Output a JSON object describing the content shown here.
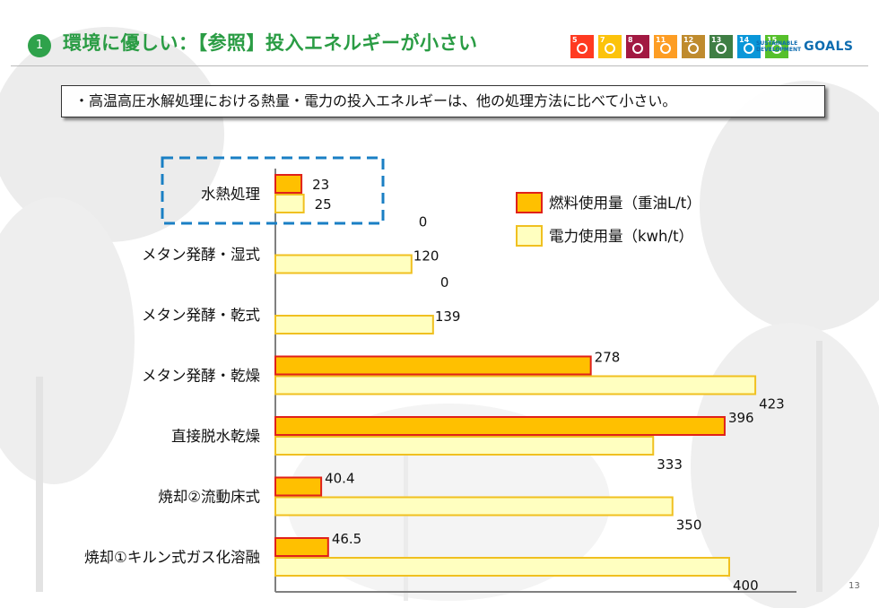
{
  "page": {
    "badge_number": "1",
    "title": "環境に優しい：【参照】投入エネルギーが小さい",
    "note": "・高温高圧水解処理における熱量・電力の投入エネルギーは、他の処理方法に比べて小さい。",
    "page_number": "13",
    "sdg_goals": [
      "5",
      "7",
      "8",
      "11",
      "12",
      "13",
      "14",
      "15"
    ],
    "sdg_logo_small": [
      "SUSTAINABLE",
      "DEVELOPMENT"
    ],
    "sdg_logo_big": "GOALS"
  },
  "colors": {
    "title_green": "#2a9c44",
    "fuel_fill": "#ffc000",
    "fuel_stroke": "#e0211a",
    "power_fill": "#ffffc0",
    "power_stroke": "#f0c020",
    "highlight_box": "#1a7fc4"
  },
  "chart_data": {
    "type": "bar",
    "orientation": "horizontal",
    "categories": [
      "水熱処理",
      "メタン発酵・湿式",
      "メタン発酵・乾式",
      "メタン発酵・乾燥",
      "直接脱水乾燥",
      "焼却②流動床式",
      "焼却①キルン式ガス化溶融"
    ],
    "series": [
      {
        "name": "燃料使用量（重油L/t）",
        "values": [
          23,
          0,
          0,
          278,
          396,
          40.4,
          46.5
        ],
        "labels": [
          "23",
          "0",
          "0",
          "278",
          "396",
          "40.4",
          "46.5"
        ]
      },
      {
        "name": "電力使用量（kwh/t）",
        "values": [
          25,
          120,
          139,
          423,
          333,
          350,
          400
        ],
        "labels": [
          "25",
          "120",
          "139",
          "423",
          "333",
          "350",
          "400"
        ]
      }
    ],
    "xlim": [
      0,
      460
    ],
    "highlighted_category": "水熱処理",
    "legend_position": "top-right",
    "grid": false
  }
}
